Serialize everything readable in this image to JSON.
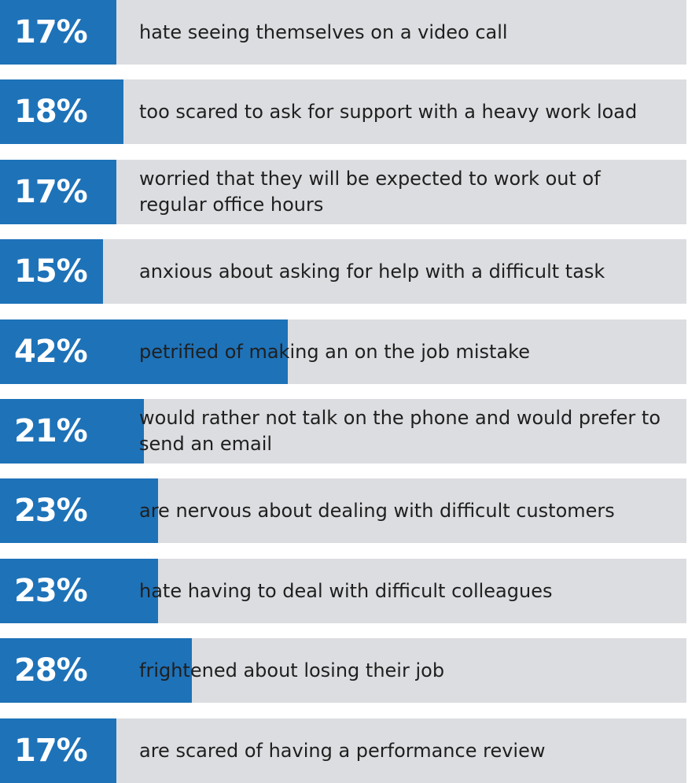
{
  "chart_data": {
    "type": "bar",
    "orientation": "horizontal",
    "unit": "%",
    "colors": {
      "bar": "#1e72b8",
      "track": "#dcdde0",
      "value_text": "#ffffff",
      "label_text": "#1f1f1f"
    },
    "xlim": [
      0,
      100
    ],
    "rows": [
      {
        "value": 17,
        "value_label": "17%",
        "label": "hate seeing themselves on a video call"
      },
      {
        "value": 18,
        "value_label": "18%",
        "label": "too scared to ask for support with a heavy work load"
      },
      {
        "value": 17,
        "value_label": "17%",
        "label": "worried that they will be expected to work out of regular office hours"
      },
      {
        "value": 15,
        "value_label": "15%",
        "label": "anxious about asking for help with a difficult task"
      },
      {
        "value": 42,
        "value_label": "42%",
        "label": "petrified of making an on the job mistake"
      },
      {
        "value": 21,
        "value_label": "21%",
        "label": "would rather not talk on the phone and would prefer to send an email"
      },
      {
        "value": 23,
        "value_label": "23%",
        "label": "are nervous about dealing with difficult customers"
      },
      {
        "value": 23,
        "value_label": "23%",
        "label": "hate having to deal with difficult colleagues"
      },
      {
        "value": 28,
        "value_label": "28%",
        "label": "frightened about losing their job"
      },
      {
        "value": 17,
        "value_label": "17%",
        "label": "are scared of having a performance review"
      }
    ]
  }
}
